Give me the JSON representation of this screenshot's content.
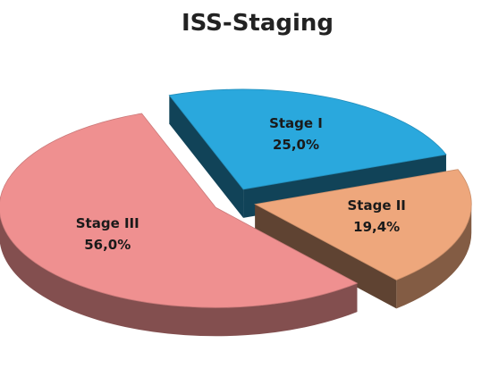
{
  "chart_data": {
    "type": "pie",
    "title": "ISS-Staging",
    "categories": [
      "Stage I",
      "Stage II",
      "Stage III"
    ],
    "values": [
      25.0,
      19.4,
      56.0
    ],
    "value_labels": [
      "25,0%",
      "19,4%",
      "56,0%"
    ],
    "colors": [
      "#2aa8dd",
      "#eea77c",
      "#ef9090"
    ]
  }
}
